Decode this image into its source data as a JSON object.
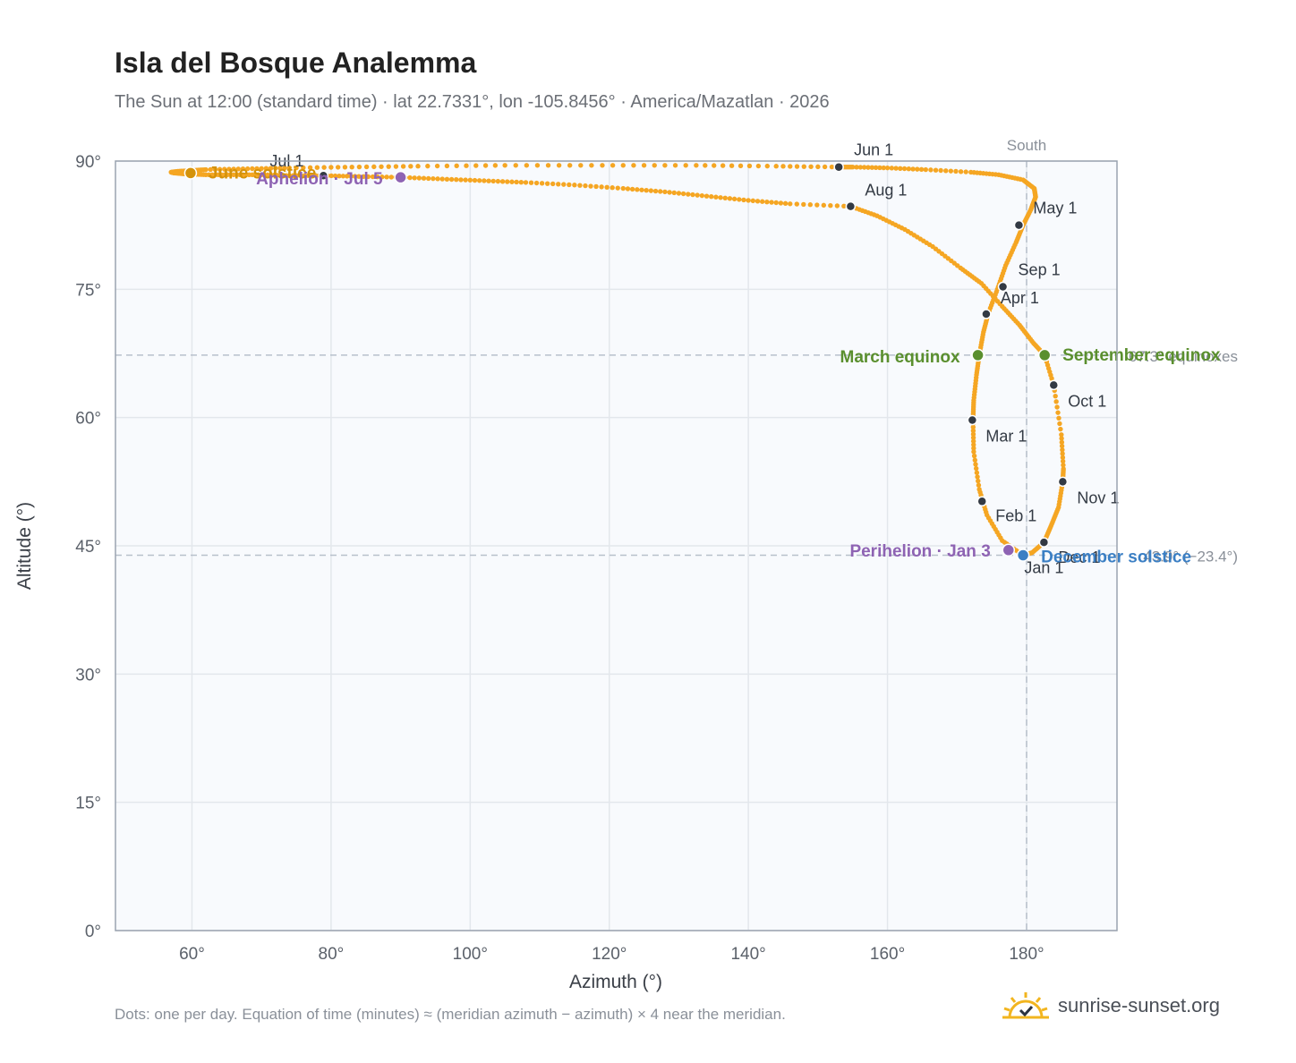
{
  "header": {
    "title": "Isla del Bosque Analemma",
    "subtitle": "The Sun at 12:00 (standard time) · lat 22.7331°, lon -105.8456° · America/Mazatlan · 2026"
  },
  "footer": {
    "note": "Dots: one per day. Equation of time (minutes) ≈ (meridian azimuth − azimuth) × 4 near the meridian.",
    "brand": "sunrise-sunset.org"
  },
  "colors": {
    "path": "#f5a623",
    "month_marker": "#333a44",
    "solstice_june": "#d4920a",
    "solstice_december": "#3b7fc4",
    "equinox": "#5a8f2e",
    "aphelion_perihelion": "#8e63b3",
    "grid": "#e3e7ec",
    "plot_bg": "#f8fafd",
    "frame": "#9aa3b0",
    "reference": "#b7c0cb"
  },
  "chart_data": {
    "type": "scatter",
    "xlabel": "Azimuth (°)",
    "ylabel": "Altitude (°)",
    "xlim": [
      49,
      193
    ],
    "ylim": [
      0,
      90
    ],
    "xticks": [
      60,
      80,
      100,
      120,
      140,
      160,
      180
    ],
    "xtick_labels": [
      "60°",
      "80°",
      "100°",
      "120°",
      "140°",
      "160°",
      "180°"
    ],
    "yticks": [
      0,
      15,
      30,
      45,
      60,
      75,
      90
    ],
    "ytick_labels": [
      "0°",
      "15°",
      "30°",
      "45°",
      "60°",
      "75°",
      "90°"
    ],
    "grid": true,
    "south_line": {
      "azimuth": 180,
      "label": "South"
    },
    "reference_lines": [
      {
        "altitude": 67.3,
        "label": "67.3° equinoxes"
      },
      {
        "altitude": 43.9,
        "label": "43.9° (−23.4°)"
      }
    ],
    "analemma_path": {
      "name": "",
      "points": [
        [
          179.5,
          43.9
        ],
        [
          176.5,
          45.6
        ],
        [
          174.3,
          48.6
        ],
        [
          173.2,
          51.6
        ],
        [
          172.4,
          56.0
        ],
        [
          172.3,
          59.7
        ],
        [
          172.4,
          62.0
        ],
        [
          172.8,
          65.0
        ],
        [
          173.2,
          67.3
        ],
        [
          173.8,
          70.0
        ],
        [
          174.5,
          72.2
        ],
        [
          175.8,
          75.0
        ],
        [
          177.0,
          77.8
        ],
        [
          178.5,
          80.5
        ],
        [
          179.5,
          82.5
        ],
        [
          180.6,
          84.3
        ],
        [
          181.3,
          85.8
        ],
        [
          181.1,
          86.8
        ],
        [
          179.5,
          87.8
        ],
        [
          176.0,
          88.4
        ],
        [
          172.0,
          88.7
        ],
        [
          165.5,
          89.0
        ],
        [
          160.0,
          89.2
        ],
        [
          155.0,
          89.3
        ],
        [
          153.0,
          89.3
        ],
        [
          144.0,
          89.4
        ],
        [
          132.5,
          89.5
        ],
        [
          119.0,
          89.5
        ],
        [
          105.0,
          89.5
        ],
        [
          92.5,
          89.4
        ],
        [
          83.0,
          89.3
        ],
        [
          74.0,
          89.2
        ],
        [
          68.0,
          89.1
        ],
        [
          62.0,
          89.0
        ],
        [
          60.0,
          88.9
        ],
        [
          58.0,
          88.8
        ],
        [
          57.0,
          88.7
        ],
        [
          57.5,
          88.6
        ],
        [
          59.0,
          88.5
        ],
        [
          62.0,
          88.4
        ],
        [
          66.0,
          88.4
        ],
        [
          70.0,
          88.4
        ],
        [
          74.0,
          88.3
        ],
        [
          78.9,
          88.3
        ],
        [
          84.0,
          88.2
        ],
        [
          90.0,
          88.1
        ],
        [
          96.0,
          87.9
        ],
        [
          102.0,
          87.7
        ],
        [
          108.0,
          87.5
        ],
        [
          115.0,
          87.2
        ],
        [
          122.0,
          86.8
        ],
        [
          128.0,
          86.4
        ],
        [
          134.0,
          85.9
        ],
        [
          140.0,
          85.4
        ],
        [
          146.0,
          85.0
        ],
        [
          154.7,
          84.7
        ],
        [
          158.5,
          83.6
        ],
        [
          162.5,
          82.0
        ],
        [
          166.5,
          80.0
        ],
        [
          170.5,
          77.5
        ],
        [
          173.5,
          75.7
        ],
        [
          176.5,
          73.0
        ],
        [
          179.0,
          70.8
        ],
        [
          181.0,
          68.7
        ],
        [
          182.6,
          67.3
        ],
        [
          183.9,
          63.8
        ],
        [
          185.0,
          58.0
        ],
        [
          185.3,
          54.0
        ],
        [
          185.2,
          52.5
        ],
        [
          184.6,
          49.5
        ],
        [
          183.5,
          47.3
        ],
        [
          182.5,
          45.4
        ],
        [
          180.8,
          44.2
        ],
        [
          179.5,
          43.9
        ]
      ]
    },
    "month_markers": [
      {
        "label": "Jan 1",
        "azimuth": 179.4,
        "altitude": 43.9
      },
      {
        "label": "Feb 1",
        "azimuth": 173.6,
        "altitude": 50.2
      },
      {
        "label": "Mar 1",
        "azimuth": 172.2,
        "altitude": 59.7
      },
      {
        "label": "Apr 1",
        "azimuth": 174.2,
        "altitude": 72.1
      },
      {
        "label": "May 1",
        "azimuth": 178.9,
        "altitude": 82.5
      },
      {
        "label": "Jun 1",
        "azimuth": 153.0,
        "altitude": 89.3
      },
      {
        "label": "Jul 1",
        "azimuth": 78.9,
        "altitude": 88.3
      },
      {
        "label": "Aug 1",
        "azimuth": 154.7,
        "altitude": 84.7
      },
      {
        "label": "Sep 1",
        "azimuth": 176.6,
        "altitude": 75.3
      },
      {
        "label": "Oct 1",
        "azimuth": 183.9,
        "altitude": 63.8
      },
      {
        "label": "Nov 1",
        "azimuth": 185.2,
        "altitude": 52.5
      },
      {
        "label": "Dec 1",
        "azimuth": 182.5,
        "altitude": 45.4
      }
    ],
    "events": [
      {
        "label": "June solstice",
        "azimuth": 59.8,
        "altitude": 88.6,
        "color_key": "solstice_june"
      },
      {
        "label": "Aphelion · Jul 5",
        "azimuth": 90.0,
        "altitude": 88.1,
        "color_key": "aphelion_perihelion"
      },
      {
        "label": "March equinox",
        "azimuth": 173.0,
        "altitude": 67.3,
        "color_key": "equinox"
      },
      {
        "label": "September equinox",
        "azimuth": 182.6,
        "altitude": 67.3,
        "color_key": "equinox"
      },
      {
        "label": "Perihelion · Jan 3",
        "azimuth": 177.4,
        "altitude": 44.5,
        "color_key": "aphelion_perihelion"
      },
      {
        "label": "December solstice",
        "azimuth": 179.5,
        "altitude": 43.9,
        "color_key": "solstice_december"
      }
    ]
  }
}
